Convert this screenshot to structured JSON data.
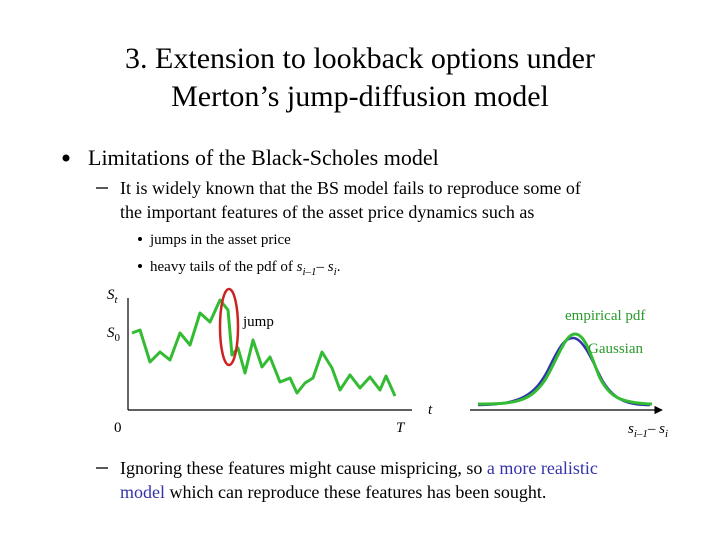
{
  "title": [
    "3. Extension to lookback options under",
    "Merton’s jump-diffusion model"
  ],
  "bullet": "Limitations of the Black-Scholes model",
  "dash1": [
    "It is widely known that the BS model fails to reproduce some of",
    "the important features of the asset price dynamics such as"
  ],
  "items": {
    "jumps": "jumps in the asset price",
    "tails": [
      "heavy tails of the pdf of ",
      "s",
      "i–1",
      "– ",
      "s",
      "i",
      "."
    ]
  },
  "figure": {
    "y_label": [
      "S",
      "t"
    ],
    "s0_label": [
      "S",
      "0"
    ],
    "origin": "0",
    "T": "T",
    "x_label": "t",
    "jump": "jump",
    "empirical": "empirical pdf",
    "gaussian": "Gaussian",
    "pdf_x_label": [
      "s",
      "i–1",
      "– ",
      "s",
      "i"
    ]
  },
  "dash2": [
    "Ignoring these features might cause mispricing, so ",
    "a more realistic",
    "model",
    " which can reproduce these features has been sought."
  ]
}
